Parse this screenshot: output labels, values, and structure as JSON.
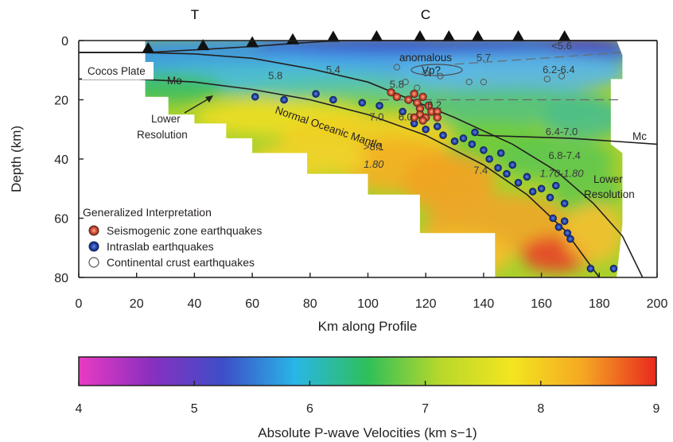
{
  "figure": {
    "top_markers": [
      "T",
      "C"
    ],
    "legend": {
      "title": "Generalized Interpretation",
      "items": [
        {
          "label": "Seismogenic zone earthquakes",
          "fill": "#e0553a",
          "stroke": "#4a2a20"
        },
        {
          "label": "Intraslab earthquakes",
          "fill": "#2244a8",
          "stroke": "#14245a"
        },
        {
          "label": "Continental crust earthquakes",
          "fill": "#ffffff",
          "stroke": "#555555"
        }
      ]
    },
    "region_labels": {
      "cocos_plate": "Cocos Plate",
      "mo": "Mo",
      "mc": "Mc",
      "lower_resolution_left": [
        "Lower",
        "Resolution"
      ],
      "lower_resolution_right": [
        "Lower",
        "Resolution"
      ],
      "normal_oceanic_mantle": "Normal Oceanic Mantle",
      "anomalous": "anomalous",
      "vp_question": "Vp?"
    },
    "velocity_labels": [
      {
        "text": "<5.6",
        "x": 167,
        "depth": 3
      },
      {
        "text": "5.7",
        "x": 140,
        "depth": 7
      },
      {
        "text": "5.4",
        "x": 88,
        "depth": 11
      },
      {
        "text": "6.2-6.4",
        "x": 166,
        "depth": 11
      },
      {
        "text": "5.8",
        "x": 68,
        "depth": 13
      },
      {
        "text": "5.8",
        "x": 110,
        "depth": 16
      },
      {
        "text": "6.2",
        "x": 123,
        "depth": 23
      },
      {
        "text": "7.0",
        "x": 103,
        "depth": 27
      },
      {
        "text": "6.0",
        "x": 113,
        "depth": 27
      },
      {
        "text": "6.4-7.0",
        "x": 167,
        "depth": 32
      },
      {
        "text": "6.8-7.4",
        "x": 168,
        "depth": 40
      },
      {
        "text": "7.4",
        "x": 139,
        "depth": 45
      },
      {
        "text": "1.70-1.80",
        "x": 167,
        "depth": 46
      },
      {
        "text": ">8.1",
        "x": 102,
        "depth": 37
      },
      {
        "text": "1.80",
        "x": 102,
        "depth": 43
      }
    ]
  },
  "chart_data": {
    "type": "heatmap",
    "xlabel": "Km along Profile",
    "ylabel": "Depth (km)",
    "xlim": [
      0,
      200
    ],
    "ylim": [
      80,
      0
    ],
    "xticks": [
      0,
      20,
      40,
      60,
      80,
      100,
      120,
      140,
      160,
      180,
      200
    ],
    "yticks": [
      0,
      20,
      40,
      60,
      80
    ],
    "stations_km": [
      24,
      43,
      60,
      74,
      88,
      103,
      118,
      128,
      138,
      152,
      168
    ],
    "boundaries": {
      "surface": [
        [
          0,
          4
        ],
        [
          24,
          4
        ],
        [
          43,
          3
        ],
        [
          60,
          2
        ],
        [
          74,
          1
        ],
        [
          90,
          0
        ],
        [
          118,
          0
        ],
        [
          200,
          0
        ]
      ],
      "slab_top": [
        [
          0,
          4
        ],
        [
          20,
          4
        ],
        [
          40,
          4.5
        ],
        [
          60,
          6
        ],
        [
          80,
          9.5
        ],
        [
          100,
          14
        ],
        [
          115,
          20
        ],
        [
          130,
          26
        ],
        [
          150,
          35
        ],
        [
          165,
          44
        ],
        [
          178,
          55
        ],
        [
          188,
          66
        ],
        [
          195,
          80
        ]
      ],
      "moho": [
        [
          0,
          13
        ],
        [
          20,
          13
        ],
        [
          40,
          14
        ],
        [
          60,
          16.5
        ],
        [
          80,
          20
        ],
        [
          100,
          25
        ],
        [
          120,
          32
        ],
        [
          140,
          42
        ],
        [
          155,
          52
        ],
        [
          168,
          64
        ],
        [
          180,
          80
        ]
      ],
      "mc": [
        [
          138,
          32
        ],
        [
          170,
          33
        ],
        [
          200,
          35
        ]
      ]
    },
    "velocity_scale": {
      "label": "Absolute P-wave Velocities (km s−1)",
      "min": 4,
      "max": 9,
      "ticks": [
        4,
        5,
        6,
        7,
        8,
        9
      ],
      "colors": [
        "#e93bc3",
        "#8a2fbf",
        "#3d4ec8",
        "#29b6e6",
        "#2fbf5a",
        "#b7d82b",
        "#f4e51f",
        "#f5a623",
        "#e8281e"
      ]
    },
    "earthquakes": {
      "seismogenic": [
        [
          108,
          17.5
        ],
        [
          110,
          19
        ],
        [
          114,
          20
        ],
        [
          116,
          18
        ],
        [
          117,
          21
        ],
        [
          118,
          23
        ],
        [
          119,
          19
        ],
        [
          118,
          25
        ],
        [
          120,
          26
        ],
        [
          121,
          22
        ],
        [
          122,
          24
        ],
        [
          116,
          26
        ],
        [
          119,
          27
        ],
        [
          124,
          24
        ],
        [
          124,
          26
        ]
      ],
      "intraslab": [
        [
          61,
          19
        ],
        [
          71,
          20
        ],
        [
          82,
          18
        ],
        [
          88,
          20
        ],
        [
          98,
          21
        ],
        [
          104,
          22
        ],
        [
          112,
          24
        ],
        [
          116,
          28
        ],
        [
          120,
          30
        ],
        [
          124,
          29
        ],
        [
          126,
          32
        ],
        [
          130,
          34
        ],
        [
          133,
          33
        ],
        [
          136,
          35
        ],
        [
          137,
          31
        ],
        [
          140,
          37
        ],
        [
          142,
          40
        ],
        [
          145,
          43
        ],
        [
          146,
          38
        ],
        [
          148,
          45
        ],
        [
          150,
          42
        ],
        [
          152,
          48
        ],
        [
          155,
          46
        ],
        [
          157,
          51
        ],
        [
          160,
          50
        ],
        [
          163,
          53
        ],
        [
          165,
          49
        ],
        [
          168,
          55
        ],
        [
          164,
          60
        ],
        [
          166,
          63
        ],
        [
          168,
          61
        ],
        [
          169,
          65
        ],
        [
          170,
          67
        ],
        [
          177,
          77
        ],
        [
          185,
          77
        ]
      ],
      "continental": [
        [
          110,
          9
        ],
        [
          113,
          14
        ],
        [
          117,
          16
        ],
        [
          120,
          11
        ],
        [
          125,
          12
        ],
        [
          135,
          14
        ],
        [
          140,
          14
        ],
        [
          162,
          13
        ],
        [
          167,
          12
        ]
      ]
    }
  }
}
